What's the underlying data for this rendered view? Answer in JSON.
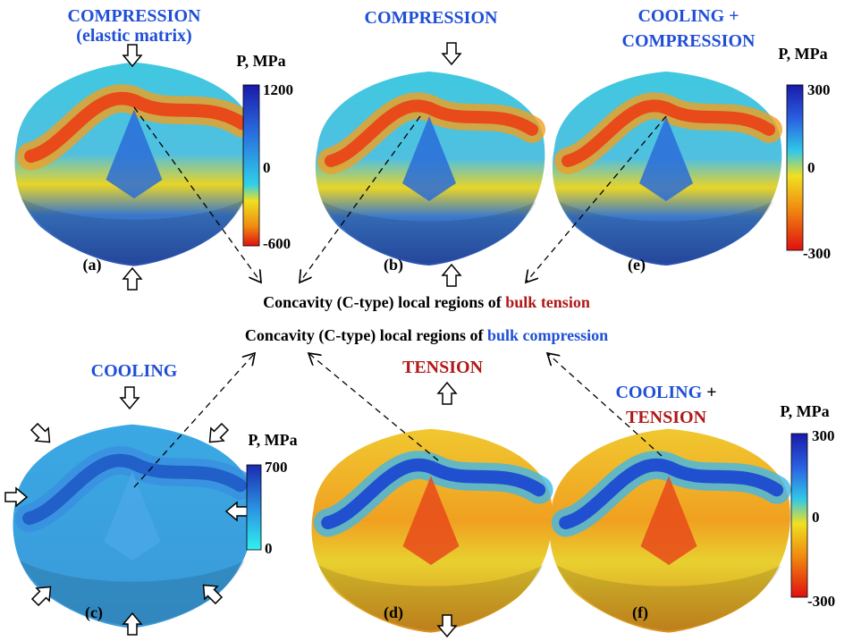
{
  "panels": [
    {
      "title": [
        "COMPRESSION",
        "(elastic matrix)"
      ],
      "label": "(a)"
    },
    {
      "title": [
        "COMPRESSION"
      ],
      "label": "(b)"
    },
    {
      "title": [
        "COOLING +",
        "COMPRESSION"
      ],
      "label": "(e)"
    },
    {
      "title": [
        "COOLING"
      ],
      "label": "(c)"
    },
    {
      "title": [
        "TENSION"
      ],
      "label": "(d)"
    },
    {
      "title": [
        "COOLING",
        "+",
        "TENSION"
      ],
      "label": "(f)"
    }
  ],
  "colorbars": [
    {
      "title": "P, MPa",
      "ticks": [
        "1200",
        "0",
        "-600"
      ]
    },
    {
      "title": "P, MPa",
      "ticks": [
        "300",
        "0",
        "-300"
      ]
    },
    {
      "title": "P, MPa",
      "ticks": [
        "700",
        "0"
      ]
    },
    {
      "title": "P, MPa",
      "ticks": [
        "300",
        "0",
        "-300"
      ]
    }
  ],
  "captions": [
    {
      "text": "Concavity (C-type) local regions of ",
      "highlight": "bulk tension"
    },
    {
      "text": "Concavity (C-type) local regions of ",
      "highlight": "bulk compression"
    }
  ]
}
